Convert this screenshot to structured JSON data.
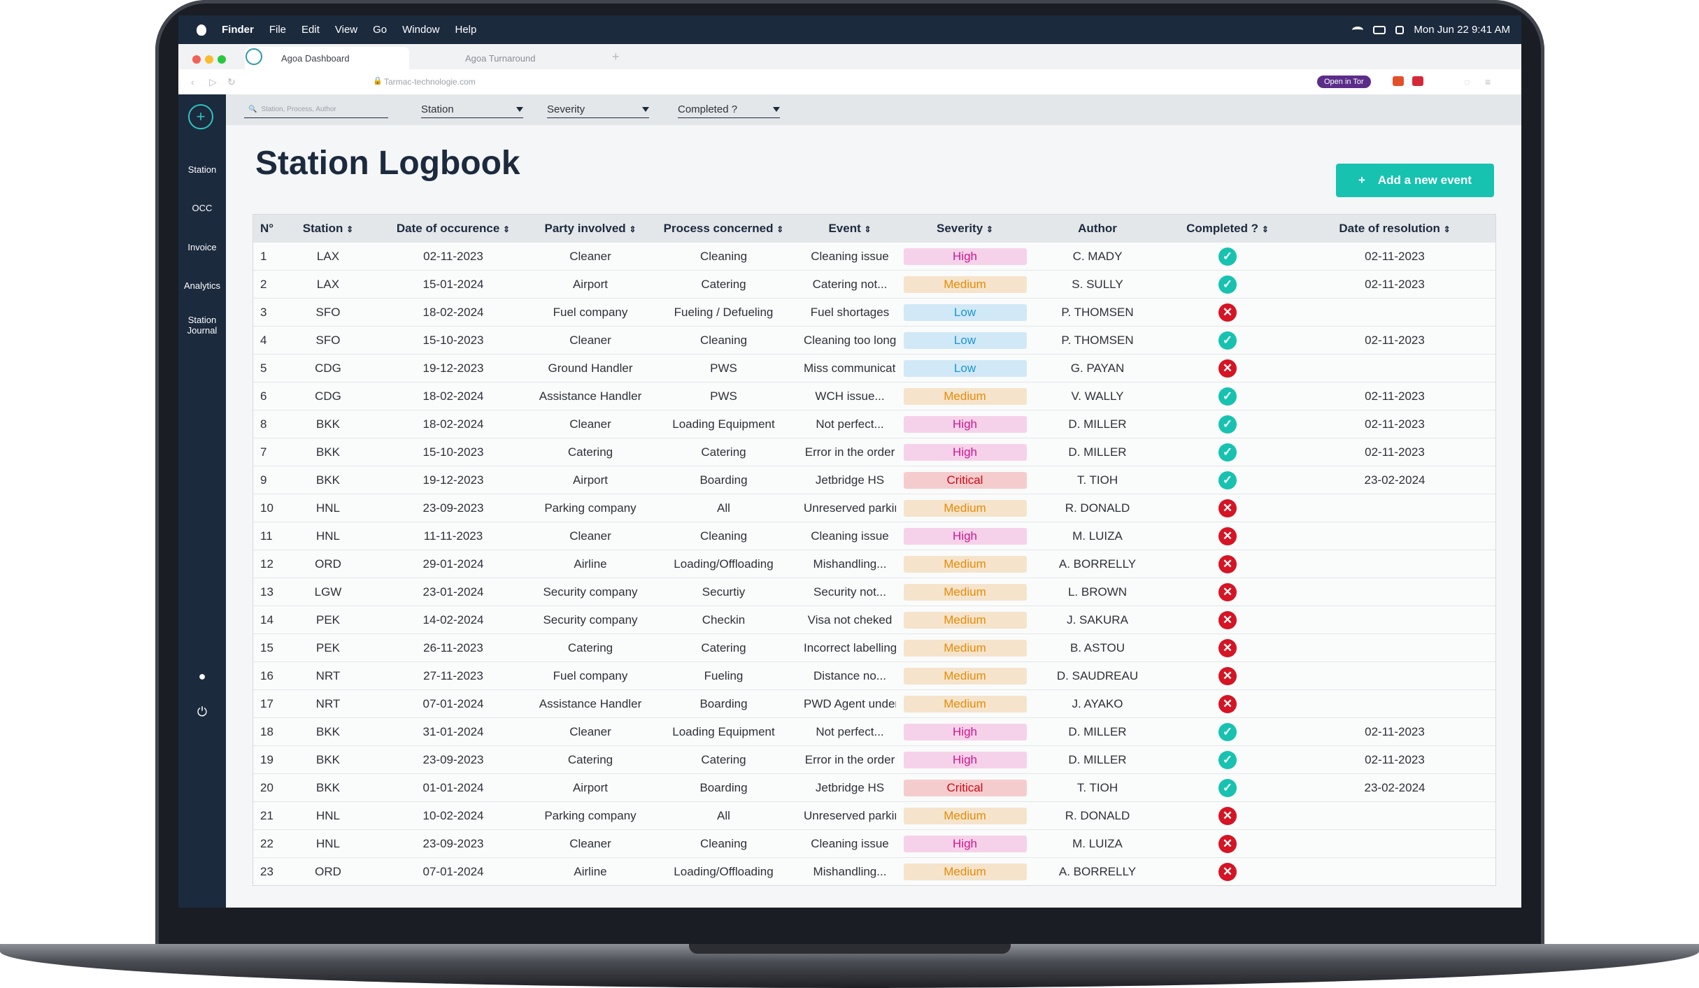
{
  "menubar": {
    "app": "Finder",
    "items": [
      "File",
      "Edit",
      "View",
      "Go",
      "Window",
      "Help"
    ],
    "datetime": "Mon Jun 22  9:41 AM"
  },
  "browser": {
    "active_tab": "Agoa Dashboard",
    "inactive_tab": "Agoa Turnaround",
    "url": "Tarmac-technologie.com",
    "tor_button": "Open in Tor"
  },
  "sidebar": {
    "items": [
      {
        "label": "Station"
      },
      {
        "label": "OCC"
      },
      {
        "label": "Invoice"
      },
      {
        "label": "Analytics"
      },
      {
        "label": "Station Journal"
      }
    ]
  },
  "filters": {
    "search_placeholder": "Station, Process, Author",
    "station": "Station",
    "severity": "Severity",
    "completed": "Completed ?"
  },
  "page": {
    "title": "Station Logbook",
    "add_button": "Add a new event"
  },
  "table": {
    "columns": [
      "N°",
      "Station",
      "Date of occurence",
      "Party involved",
      "Process concerned",
      "Event",
      "Severity",
      "Author",
      "Completed ?",
      "Date of resolution"
    ],
    "rows": [
      {
        "n": "1",
        "station": "LAX",
        "date": "02-11-2023",
        "party": "Cleaner",
        "process": "Cleaning",
        "event": "Cleaning issue",
        "severity": "High",
        "author": "C. MADY",
        "completed": true,
        "resolution": "02-11-2023"
      },
      {
        "n": "2",
        "station": "LAX",
        "date": "15-01-2024",
        "party": "Airport",
        "process": "Catering",
        "event": "Catering not...",
        "severity": "Medium",
        "author": "S. SULLY",
        "completed": true,
        "resolution": "02-11-2023"
      },
      {
        "n": "3",
        "station": "SFO",
        "date": "18-02-2024",
        "party": "Fuel company",
        "process": "Fueling / Defueling",
        "event": "Fuel shortages",
        "severity": "Low",
        "author": "P. THOMSEN",
        "completed": false,
        "resolution": ""
      },
      {
        "n": "4",
        "station": "SFO",
        "date": "15-10-2023",
        "party": "Cleaner",
        "process": "Cleaning",
        "event": "Cleaning too long",
        "severity": "Low",
        "author": "P. THOMSEN",
        "completed": true,
        "resolution": "02-11-2023"
      },
      {
        "n": "5",
        "station": "CDG",
        "date": "19-12-2023",
        "party": "Ground Handler",
        "process": "PWS",
        "event": "Miss communication",
        "severity": "Low",
        "author": "G. PAYAN",
        "completed": false,
        "resolution": ""
      },
      {
        "n": "6",
        "station": "CDG",
        "date": "18-02-2024",
        "party": "Assistance Handler",
        "process": "PWS",
        "event": "WCH issue...",
        "severity": "Medium",
        "author": "V. WALLY",
        "completed": true,
        "resolution": "02-11-2023"
      },
      {
        "n": "8",
        "station": "BKK",
        "date": "18-02-2024",
        "party": "Cleaner",
        "process": "Loading Equipment",
        "event": "Not perfect...",
        "severity": "High",
        "author": "D. MILLER",
        "completed": true,
        "resolution": "02-11-2023"
      },
      {
        "n": "7",
        "station": "BKK",
        "date": "15-10-2023",
        "party": "Catering",
        "process": "Catering",
        "event": "Error in the order",
        "severity": "High",
        "author": "D. MILLER",
        "completed": true,
        "resolution": "02-11-2023"
      },
      {
        "n": "9",
        "station": "BKK",
        "date": "19-12-2023",
        "party": "Airport",
        "process": "Boarding",
        "event": "Jetbridge HS",
        "severity": "Critical",
        "author": "T. TIOH",
        "completed": true,
        "resolution": "23-02-2024"
      },
      {
        "n": "10",
        "station": "HNL",
        "date": "23-09-2023",
        "party": "Parking company",
        "process": "All",
        "event": "Unreserved parking",
        "severity": "Medium",
        "author": "R. DONALD",
        "completed": false,
        "resolution": ""
      },
      {
        "n": "11",
        "station": "HNL",
        "date": "11-11-2023",
        "party": "Cleaner",
        "process": "Cleaning",
        "event": "Cleaning issue",
        "severity": "High",
        "author": "M. LUIZA",
        "completed": false,
        "resolution": ""
      },
      {
        "n": "12",
        "station": "ORD",
        "date": "29-01-2024",
        "party": "Airline",
        "process": "Loading/Offloading",
        "event": "Mishandling...",
        "severity": "Medium",
        "author": "A. BORRELLY",
        "completed": false,
        "resolution": ""
      },
      {
        "n": "13",
        "station": "LGW",
        "date": "23-01-2024",
        "party": "Security company",
        "process": "Securtiy",
        "event": "Security not...",
        "severity": "Medium",
        "author": "L. BROWN",
        "completed": false,
        "resolution": ""
      },
      {
        "n": "14",
        "station": "PEK",
        "date": "14-02-2024",
        "party": "Security company",
        "process": "Checkin",
        "event": "Visa not cheked",
        "severity": "Medium",
        "author": "J. SAKURA",
        "completed": false,
        "resolution": ""
      },
      {
        "n": "15",
        "station": "PEK",
        "date": "26-11-2023",
        "party": "Catering",
        "process": "Catering",
        "event": "Incorrect labelling",
        "severity": "Medium",
        "author": "B. ASTOU",
        "completed": false,
        "resolution": ""
      },
      {
        "n": "16",
        "station": "NRT",
        "date": "27-11-2023",
        "party": "Fuel company",
        "process": "Fueling",
        "event": "Distance no...",
        "severity": "Medium",
        "author": "D. SAUDREAU",
        "completed": false,
        "resolution": ""
      },
      {
        "n": "17",
        "station": "NRT",
        "date": "07-01-2024",
        "party": "Assistance Handler",
        "process": "Boarding",
        "event": "PWD Agent unders...",
        "severity": "Medium",
        "author": "J. AYAKO",
        "completed": false,
        "resolution": ""
      },
      {
        "n": "18",
        "station": "BKK",
        "date": "31-01-2024",
        "party": "Cleaner",
        "process": "Loading Equipment",
        "event": "Not perfect...",
        "severity": "High",
        "author": "D. MILLER",
        "completed": true,
        "resolution": "02-11-2023"
      },
      {
        "n": "19",
        "station": "BKK",
        "date": "23-09-2023",
        "party": "Catering",
        "process": "Catering",
        "event": "Error in the order",
        "severity": "High",
        "author": "D. MILLER",
        "completed": true,
        "resolution": "02-11-2023"
      },
      {
        "n": "20",
        "station": "BKK",
        "date": "01-01-2024",
        "party": "Airport",
        "process": "Boarding",
        "event": "Jetbridge HS",
        "severity": "Critical",
        "author": "T. TIOH",
        "completed": true,
        "resolution": "23-02-2024"
      },
      {
        "n": "21",
        "station": "HNL",
        "date": "10-02-2024",
        "party": "Parking company",
        "process": "All",
        "event": "Unreserved parking",
        "severity": "Medium",
        "author": "R. DONALD",
        "completed": false,
        "resolution": ""
      },
      {
        "n": "22",
        "station": "HNL",
        "date": "23-09-2023",
        "party": "Cleaner",
        "process": "Cleaning",
        "event": "Cleaning issue",
        "severity": "High",
        "author": "M. LUIZA",
        "completed": false,
        "resolution": ""
      },
      {
        "n": "23",
        "station": "ORD",
        "date": "07-01-2024",
        "party": "Airline",
        "process": "Loading/Offloading",
        "event": "Mishandling...",
        "severity": "Medium",
        "author": "A. BORRELLY",
        "completed": false,
        "resolution": ""
      }
    ]
  },
  "colors": {
    "sidebar": "#1c2a3e",
    "accent": "#17c2b0",
    "high": "#d1168c",
    "medium": "#e88a06",
    "low": "#1b95d8",
    "critical": "#cc0a18",
    "not_completed": "#d51424"
  }
}
